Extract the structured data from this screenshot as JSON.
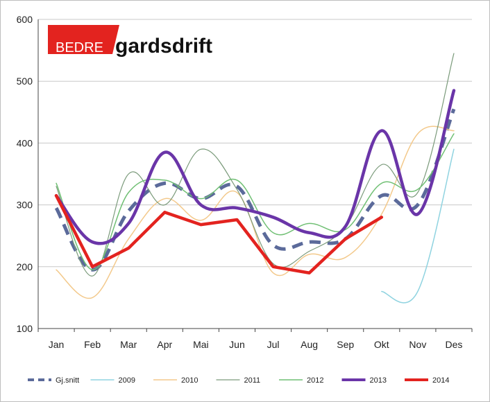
{
  "logo": {
    "prefix": "BEDRE",
    "name": "gardsdrift"
  },
  "chart_data": {
    "type": "line",
    "categories": [
      "Jan",
      "Feb",
      "Mar",
      "Apr",
      "Mai",
      "Jun",
      "Jul",
      "Aug",
      "Sep",
      "Okt",
      "Nov",
      "Des"
    ],
    "ylim": [
      100,
      600
    ],
    "yticks": [
      100,
      200,
      300,
      400,
      500,
      600
    ],
    "grid": true,
    "legend": "bottom",
    "series": [
      {
        "name": "Gj.snitt",
        "color": "#5b6a9a",
        "style": "dashed",
        "values": [
          295,
          195,
          290,
          335,
          310,
          330,
          235,
          240,
          245,
          315,
          300,
          455
        ]
      },
      {
        "name": "2009",
        "color": "#8fd3e0",
        "style": "solid",
        "values": [
          null,
          null,
          null,
          null,
          null,
          null,
          null,
          null,
          null,
          160,
          160,
          390
        ]
      },
      {
        "name": "2010",
        "color": "#f3c98b",
        "style": "solid",
        "values": [
          195,
          150,
          245,
          310,
          275,
          320,
          190,
          220,
          215,
          285,
          415,
          420
        ]
      },
      {
        "name": "2011",
        "color": "#7a9a7a",
        "style": "solid",
        "values": [
          330,
          185,
          350,
          300,
          390,
          325,
          205,
          225,
          265,
          365,
          320,
          545
        ]
      },
      {
        "name": "2012",
        "color": "#6fbf73",
        "style": "solid",
        "values": [
          335,
          195,
          320,
          340,
          310,
          340,
          255,
          270,
          260,
          335,
          325,
          415
        ]
      },
      {
        "name": "2013",
        "color": "#6a35a8",
        "style": "solid",
        "values": [
          315,
          240,
          270,
          385,
          300,
          295,
          280,
          255,
          265,
          420,
          285,
          485
        ]
      },
      {
        "name": "2014",
        "color": "#e3231f",
        "style": "solid",
        "values": [
          315,
          200,
          230,
          288,
          268,
          276,
          200,
          190,
          245,
          280,
          null,
          null
        ]
      }
    ]
  }
}
